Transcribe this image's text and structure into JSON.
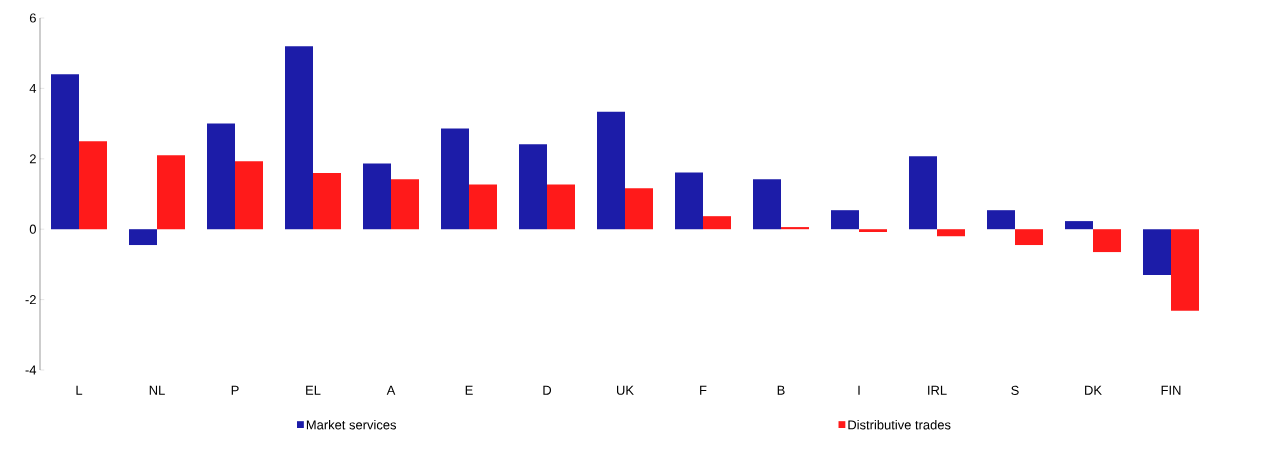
{
  "chart_data": {
    "type": "bar",
    "categories": [
      "L",
      "NL",
      "P",
      "EL",
      "A",
      "E",
      "D",
      "UK",
      "F",
      "B",
      "I",
      "IRL",
      "S",
      "DK",
      "FIN"
    ],
    "series": [
      {
        "name": "Market services",
        "color": "#1c1ca8",
        "values": [
          4.4,
          -0.45,
          3.0,
          5.2,
          1.87,
          2.86,
          2.41,
          3.34,
          1.61,
          1.42,
          0.54,
          2.07,
          0.54,
          0.23,
          -1.3
        ]
      },
      {
        "name": "Distributive trades",
        "color": "#ff1a1a",
        "values": [
          2.5,
          2.1,
          1.93,
          1.6,
          1.42,
          1.27,
          1.27,
          1.16,
          0.37,
          0.06,
          -0.08,
          -0.2,
          -0.45,
          -0.65,
          -2.32
        ]
      }
    ],
    "ylim": [
      -4,
      6
    ],
    "yticks": [
      -4,
      -2,
      0,
      2,
      4,
      6
    ],
    "grid": false,
    "legend": "bottom"
  }
}
